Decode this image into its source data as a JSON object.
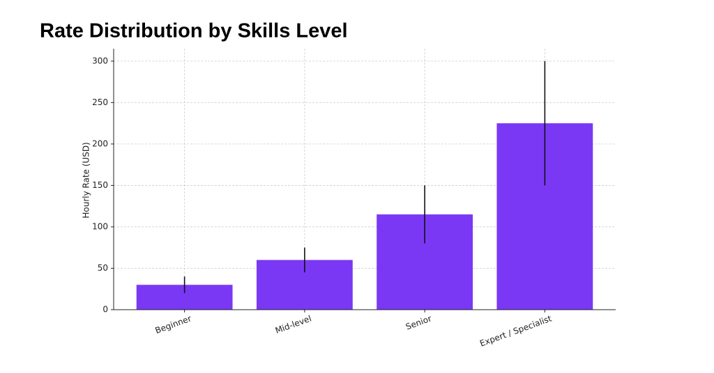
{
  "chart_data": {
    "type": "bar",
    "title": "Rate Distribution by Skills Level",
    "y_label": "Hourly Rate (USD)",
    "categories": [
      "Beginner",
      "Mid-level",
      "Senior",
      "Expert / Specialist"
    ],
    "values": [
      30,
      60,
      115,
      225
    ],
    "errors": [
      10,
      15,
      35,
      75
    ],
    "color": "#7a38f5",
    "ylim": [
      0,
      315
    ],
    "yticks": [
      0,
      50,
      100,
      150,
      200,
      250,
      300
    ],
    "grid": true
  }
}
